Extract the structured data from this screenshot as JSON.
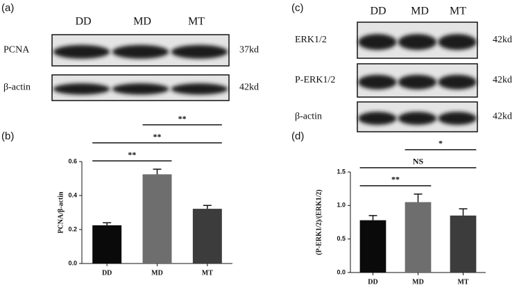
{
  "blots": [
    {
      "panel": "(a)",
      "lanes": [
        "DD",
        "MD",
        "MT"
      ],
      "rows": [
        {
          "label": "PCNA",
          "size": "37kd"
        },
        {
          "label": "β-actin",
          "size": "42kd"
        }
      ]
    },
    {
      "panel": "(c)",
      "lanes": [
        "DD",
        "MD",
        "MT"
      ],
      "rows": [
        {
          "label": "ERK1/2",
          "size": "42kd"
        },
        {
          "label": "P-ERK1/2",
          "size": "42kd"
        },
        {
          "label": "β-actin",
          "size": "42kd"
        }
      ]
    }
  ],
  "chart_data": [
    {
      "type": "bar",
      "panel": "(b)",
      "y_label": "PCNA/β-actin",
      "categories": [
        "DD",
        "MD",
        "MT"
      ],
      "values": [
        0.225,
        0.525,
        0.322
      ],
      "errors": [
        0.015,
        0.03,
        0.02
      ],
      "colors": [
        "#0a0a0a",
        "#6e6e6e",
        "#3c3c3c"
      ],
      "ylim": [
        0,
        0.6
      ],
      "yticks": [
        {
          "value": 0,
          "label": "0.0"
        },
        0.2,
        0.4,
        0.6
      ],
      "annotations": [
        {
          "text": "**",
          "between": [
            "DD",
            "MD"
          ]
        },
        {
          "text": "**",
          "between": [
            "DD",
            "MT"
          ]
        },
        {
          "text": "**",
          "between": [
            "MD",
            "MT"
          ]
        }
      ]
    },
    {
      "type": "bar",
      "panel": "(d)",
      "y_label": "(P-ERK1/2)/(ERK1/2)",
      "categories": [
        "DD",
        "MD",
        "MT"
      ],
      "values": [
        0.78,
        1.05,
        0.85
      ],
      "errors": [
        0.07,
        0.12,
        0.1
      ],
      "colors": [
        "#0a0a0a",
        "#6e6e6e",
        "#3c3c3c"
      ],
      "ylim": [
        0,
        1.5
      ],
      "yticks": [
        {
          "value": 0,
          "label": "0.0"
        },
        0.5,
        {
          "value": 1,
          "label": "1.0"
        },
        1.5
      ],
      "annotations": [
        {
          "text": "**",
          "between": [
            "DD",
            "MD"
          ]
        },
        {
          "text": "NS",
          "between": [
            "DD",
            "MT"
          ]
        },
        {
          "text": "*",
          "between": [
            "MD",
            "MT"
          ]
        }
      ]
    }
  ]
}
